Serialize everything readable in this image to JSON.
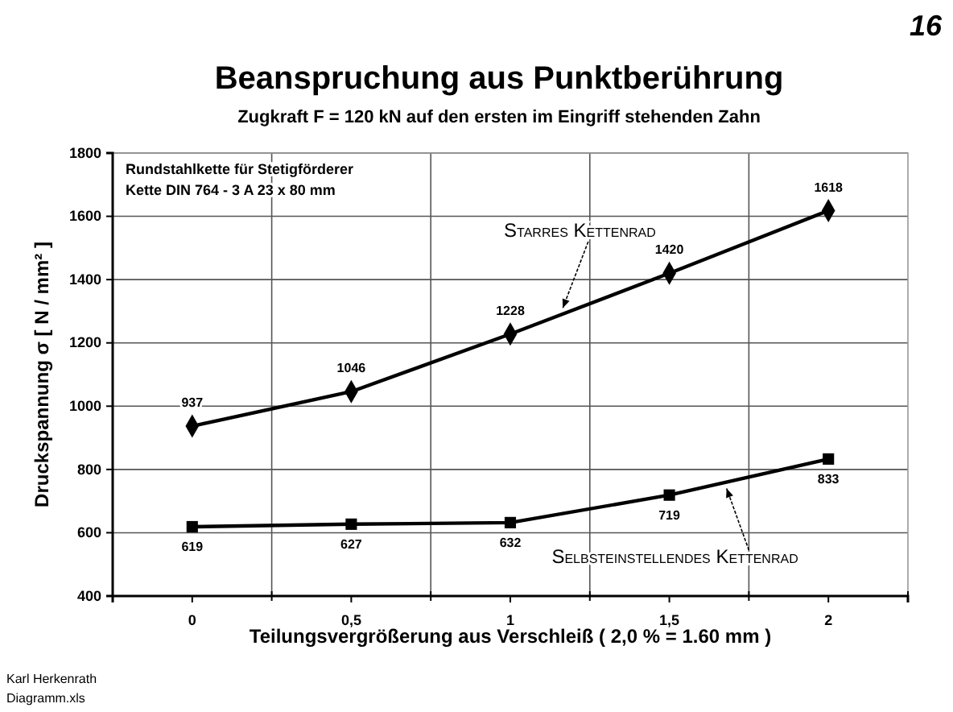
{
  "chart_data": {
    "type": "line",
    "title": "Beanspruchung aus Punktberührung",
    "subtitle": "Zugkraft F = 120 kN auf den ersten im Eingriff stehenden Zahn",
    "xlabel": "Teilungsvergrößerung aus Verschleiß ( 2,0 % = 1.60 mm )",
    "ylabel": "Druckspannung σ [ N / mm² ]",
    "categories": [
      "0",
      "0,5",
      "1",
      "1,5",
      "2"
    ],
    "series": [
      {
        "name": "Starres Kettenrad",
        "color": "#000000",
        "marker": "diamond",
        "values": [
          937,
          1046,
          1228,
          1420,
          1618
        ]
      },
      {
        "name": "Selbsteinstellendes Kettenrad",
        "color": "#000000",
        "marker": "square",
        "values": [
          619,
          627,
          632,
          719,
          833
        ]
      }
    ],
    "ylim": [
      400,
      1800
    ],
    "yticks": [
      400,
      600,
      800,
      1000,
      1200,
      1400,
      1600,
      1800
    ],
    "grid": true,
    "data_labels": true,
    "line_style": "solid",
    "annotations": [
      "Rundstahlkette für Stetigförderer",
      "Kette DIN 764  - 3 A  23  x  80 mm",
      "16",
      "Karl Herkenrath",
      "Diagramm.xls"
    ]
  }
}
